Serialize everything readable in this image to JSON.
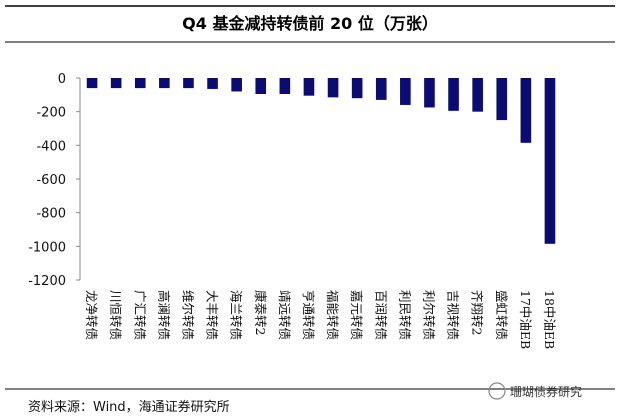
{
  "chart_data": {
    "type": "bar",
    "title": "Q4 基金减持转债前 20 位（万张）",
    "categories": [
      "龙净转债",
      "川恒转债",
      "广汇转债",
      "高澜转债",
      "维尔转债",
      "大丰转债",
      "海兰转债",
      "康泰转2",
      "靖远转债",
      "亨通转债",
      "福能转债",
      "嘉元转债",
      "百润转债",
      "利民转债",
      "利尔转债",
      "吉视转债",
      "齐翔转2",
      "盛虹转债",
      "17中油EB",
      "18中油EB"
    ],
    "values": [
      -60,
      -60,
      -60,
      -60,
      -60,
      -65,
      -80,
      -95,
      -95,
      -105,
      -115,
      -120,
      -130,
      -160,
      -175,
      -195,
      -200,
      -250,
      -385,
      -985
    ],
    "color": "#0b0b72",
    "ylim": [
      -1200,
      0
    ],
    "yticks": [
      0,
      -200,
      -400,
      -600,
      -800,
      -1000,
      -1200
    ],
    "grid": false,
    "source": "资料来源：Wind，海通证券研究所",
    "watermark": "珊瑚债券研究"
  }
}
